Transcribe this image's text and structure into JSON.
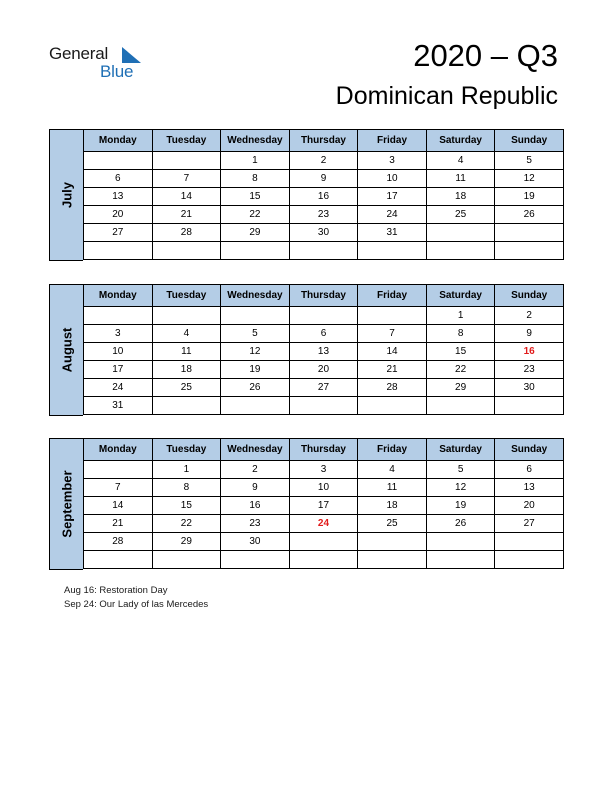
{
  "logo": {
    "general": "General",
    "blue": "Blue"
  },
  "header": {
    "title": "2020 – Q3",
    "subtitle": "Dominican Republic"
  },
  "colors": {
    "header_fill": "#b4cde6",
    "holiday": "#e11b1b",
    "brand_blue": "#1f6fb5"
  },
  "weekdays": [
    "Monday",
    "Tuesday",
    "Wednesday",
    "Thursday",
    "Friday",
    "Saturday",
    "Sunday"
  ],
  "months": [
    {
      "name": "July",
      "weeks": [
        [
          "",
          "",
          "1",
          "2",
          "3",
          "4",
          "5"
        ],
        [
          "6",
          "7",
          "8",
          "9",
          "10",
          "11",
          "12"
        ],
        [
          "13",
          "14",
          "15",
          "16",
          "17",
          "18",
          "19"
        ],
        [
          "20",
          "21",
          "22",
          "23",
          "24",
          "25",
          "26"
        ],
        [
          "27",
          "28",
          "29",
          "30",
          "31",
          "",
          ""
        ],
        [
          "",
          "",
          "",
          "",
          "",
          "",
          ""
        ]
      ],
      "holidays": []
    },
    {
      "name": "August",
      "weeks": [
        [
          "",
          "",
          "",
          "",
          "",
          "1",
          "2"
        ],
        [
          "3",
          "4",
          "5",
          "6",
          "7",
          "8",
          "9"
        ],
        [
          "10",
          "11",
          "12",
          "13",
          "14",
          "15",
          "16"
        ],
        [
          "17",
          "18",
          "19",
          "20",
          "21",
          "22",
          "23"
        ],
        [
          "24",
          "25",
          "26",
          "27",
          "28",
          "29",
          "30"
        ],
        [
          "31",
          "",
          "",
          "",
          "",
          "",
          ""
        ]
      ],
      "holidays": [
        "16"
      ]
    },
    {
      "name": "September",
      "weeks": [
        [
          "",
          "1",
          "2",
          "3",
          "4",
          "5",
          "6"
        ],
        [
          "7",
          "8",
          "9",
          "10",
          "11",
          "12",
          "13"
        ],
        [
          "14",
          "15",
          "16",
          "17",
          "18",
          "19",
          "20"
        ],
        [
          "21",
          "22",
          "23",
          "24",
          "25",
          "26",
          "27"
        ],
        [
          "28",
          "29",
          "30",
          "",
          "",
          "",
          ""
        ],
        [
          "",
          "",
          "",
          "",
          "",
          "",
          ""
        ]
      ],
      "holidays": [
        "24"
      ]
    }
  ],
  "notes": [
    "Aug 16: Restoration Day",
    "Sep 24: Our Lady of las Mercedes"
  ]
}
